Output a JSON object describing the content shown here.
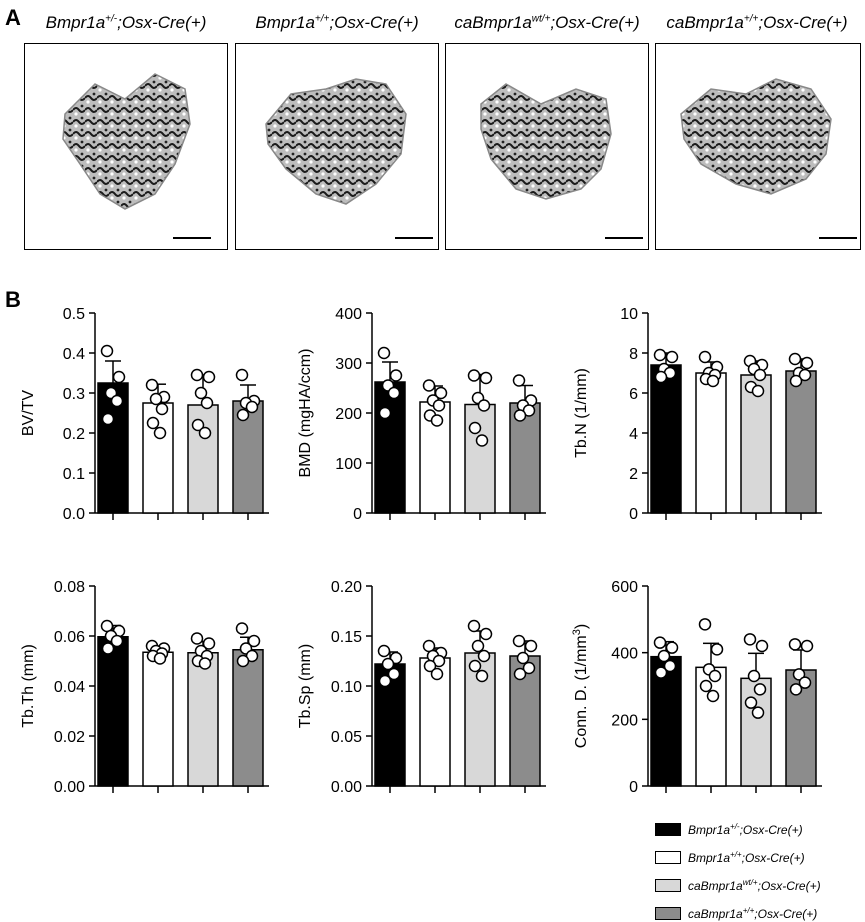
{
  "panel_a": {
    "letter": "A",
    "titles": [
      {
        "base": "Bmpr1a",
        "sup": "+/-",
        "rest": ";Osx-Cre(+)"
      },
      {
        "base": "Bmpr1a",
        "sup": "+/+",
        "rest": ";Osx-Cre(+)"
      },
      {
        "base": "caBmpr1a",
        "sup": "wt/+",
        "rest": ";Osx-Cre(+)"
      },
      {
        "base": "caBmpr1a",
        "sup": "+/+",
        "rest": ";Osx-Cre(+)"
      }
    ]
  },
  "panel_b": {
    "letter": "B"
  },
  "group_colors": [
    "#000000",
    "#ffffff",
    "#d8d8d8",
    "#8c8c8c"
  ],
  "legend": [
    {
      "base": "Bmpr1a",
      "sup": "+/-",
      "rest": ";Osx-Cre(+)",
      "color": "#000000"
    },
    {
      "base": "Bmpr1a",
      "sup": "+/+",
      "rest": ";Osx-Cre(+)",
      "color": "#ffffff"
    },
    {
      "base": "caBmpr1a",
      "sup": "wt/+",
      "rest": ";Osx-Cre(+)",
      "color": "#d8d8d8"
    },
    {
      "base": "caBmpr1a",
      "sup": "+/+",
      "rest": ";Osx-Cre(+)",
      "color": "#8c8c8c"
    }
  ],
  "chart_data": [
    {
      "type": "bar",
      "ylabel": "BV/TV",
      "ylim": [
        0,
        0.5
      ],
      "yticks": [
        "0.0",
        "0.1",
        "0.2",
        "0.3",
        "0.4",
        "0.5"
      ],
      "categories": [
        "Bmpr1a+/-;Osx-Cre(+)",
        "Bmpr1a+/+;Osx-Cre(+)",
        "caBmpr1awt/+;Osx-Cre(+)",
        "caBmpr1a+/+;Osx-Cre(+)"
      ],
      "values": [
        0.325,
        0.275,
        0.27,
        0.28
      ],
      "sd": [
        0.055,
        0.047,
        0.075,
        0.04
      ],
      "points": [
        [
          0.405,
          0.34,
          0.3,
          0.28,
          0.235
        ],
        [
          0.32,
          0.29,
          0.285,
          0.26,
          0.225,
          0.2
        ],
        [
          0.345,
          0.34,
          0.3,
          0.275,
          0.22,
          0.2
        ],
        [
          0.345,
          0.28,
          0.275,
          0.265,
          0.245
        ]
      ]
    },
    {
      "type": "bar",
      "ylabel": "BMD (mgHA/ccm)",
      "ylim": [
        0,
        400
      ],
      "yticks": [
        "0",
        "100",
        "200",
        "300",
        "400"
      ],
      "categories": [
        "Bmpr1a+/-;Osx-Cre(+)",
        "Bmpr1a+/+;Osx-Cre(+)",
        "caBmpr1awt/+;Osx-Cre(+)",
        "caBmpr1a+/+;Osx-Cre(+)"
      ],
      "values": [
        262,
        222,
        217,
        220
      ],
      "sd": [
        40,
        32,
        60,
        35
      ],
      "points": [
        [
          320,
          275,
          255,
          240,
          200
        ],
        [
          255,
          240,
          225,
          215,
          195,
          185
        ],
        [
          275,
          270,
          230,
          215,
          170,
          145
        ],
        [
          265,
          225,
          215,
          205,
          195
        ]
      ]
    },
    {
      "type": "bar",
      "ylabel": "Tb.N (1/mm)",
      "ylim": [
        0,
        10
      ],
      "yticks": [
        "0",
        "2",
        "4",
        "6",
        "8",
        "10"
      ],
      "categories": [
        "Bmpr1a+/-;Osx-Cre(+)",
        "Bmpr1a+/+;Osx-Cre(+)",
        "caBmpr1awt/+;Osx-Cre(+)",
        "caBmpr1a+/+;Osx-Cre(+)"
      ],
      "values": [
        7.4,
        7.0,
        6.9,
        7.1
      ],
      "sd": [
        0.6,
        0.55,
        0.7,
        0.6
      ],
      "points": [
        [
          7.9,
          7.8,
          7.2,
          7.0,
          6.8
        ],
        [
          7.8,
          7.3,
          7.0,
          6.9,
          6.7,
          6.6
        ],
        [
          7.6,
          7.4,
          7.2,
          6.9,
          6.3,
          6.1
        ],
        [
          7.7,
          7.5,
          7.0,
          6.9,
          6.6
        ]
      ]
    },
    {
      "type": "bar",
      "ylabel": "Tb.Th (mm)",
      "ylim": [
        0,
        0.08
      ],
      "yticks": [
        "0.00",
        "0.02",
        "0.04",
        "0.06",
        "0.08"
      ],
      "categories": [
        "Bmpr1a+/-;Osx-Cre(+)",
        "Bmpr1a+/+;Osx-Cre(+)",
        "caBmpr1awt/+;Osx-Cre(+)",
        "caBmpr1a+/+;Osx-Cre(+)"
      ],
      "values": [
        0.0597,
        0.0535,
        0.0533,
        0.0545
      ],
      "sd": [
        0.0045,
        0.002,
        0.0045,
        0.005
      ],
      "points": [
        [
          0.064,
          0.062,
          0.06,
          0.058,
          0.055
        ],
        [
          0.056,
          0.055,
          0.054,
          0.053,
          0.052,
          0.051
        ],
        [
          0.059,
          0.057,
          0.054,
          0.052,
          0.05,
          0.049
        ],
        [
          0.063,
          0.058,
          0.055,
          0.052,
          0.05
        ]
      ]
    },
    {
      "type": "bar",
      "ylabel": "Tb.Sp (mm)",
      "ylim": [
        0,
        0.2
      ],
      "yticks": [
        "0.00",
        "0.05",
        "0.10",
        "0.15",
        "0.20"
      ],
      "categories": [
        "Bmpr1a+/-;Osx-Cre(+)",
        "Bmpr1a+/+;Osx-Cre(+)",
        "caBmpr1awt/+;Osx-Cre(+)",
        "caBmpr1a+/+;Osx-Cre(+)"
      ],
      "values": [
        0.122,
        0.128,
        0.133,
        0.13
      ],
      "sd": [
        0.012,
        0.01,
        0.022,
        0.015
      ],
      "points": [
        [
          0.135,
          0.128,
          0.122,
          0.112,
          0.105
        ],
        [
          0.14,
          0.133,
          0.13,
          0.125,
          0.12,
          0.112
        ],
        [
          0.16,
          0.152,
          0.14,
          0.13,
          0.12,
          0.11
        ],
        [
          0.145,
          0.14,
          0.128,
          0.118,
          0.112
        ]
      ]
    },
    {
      "type": "bar",
      "ylabel": "Conn. D. (1/mm",
      "ylabel_sup": "3",
      "ylabel_close": ")",
      "ylim": [
        0,
        600
      ],
      "yticks": [
        "0",
        "200",
        "400",
        "600"
      ],
      "categories": [
        "Bmpr1a+/-;Osx-Cre(+)",
        "Bmpr1a+/+;Osx-Cre(+)",
        "caBmpr1awt/+;Osx-Cre(+)",
        "caBmpr1a+/+;Osx-Cre(+)"
      ],
      "values": [
        388,
        356,
        323,
        348
      ],
      "sd": [
        45,
        72,
        75,
        60
      ],
      "points": [
        [
          430,
          415,
          390,
          360,
          340
        ],
        [
          485,
          410,
          350,
          330,
          300,
          270
        ],
        [
          440,
          420,
          330,
          290,
          250,
          220
        ],
        [
          425,
          420,
          335,
          310,
          290
        ]
      ]
    }
  ]
}
